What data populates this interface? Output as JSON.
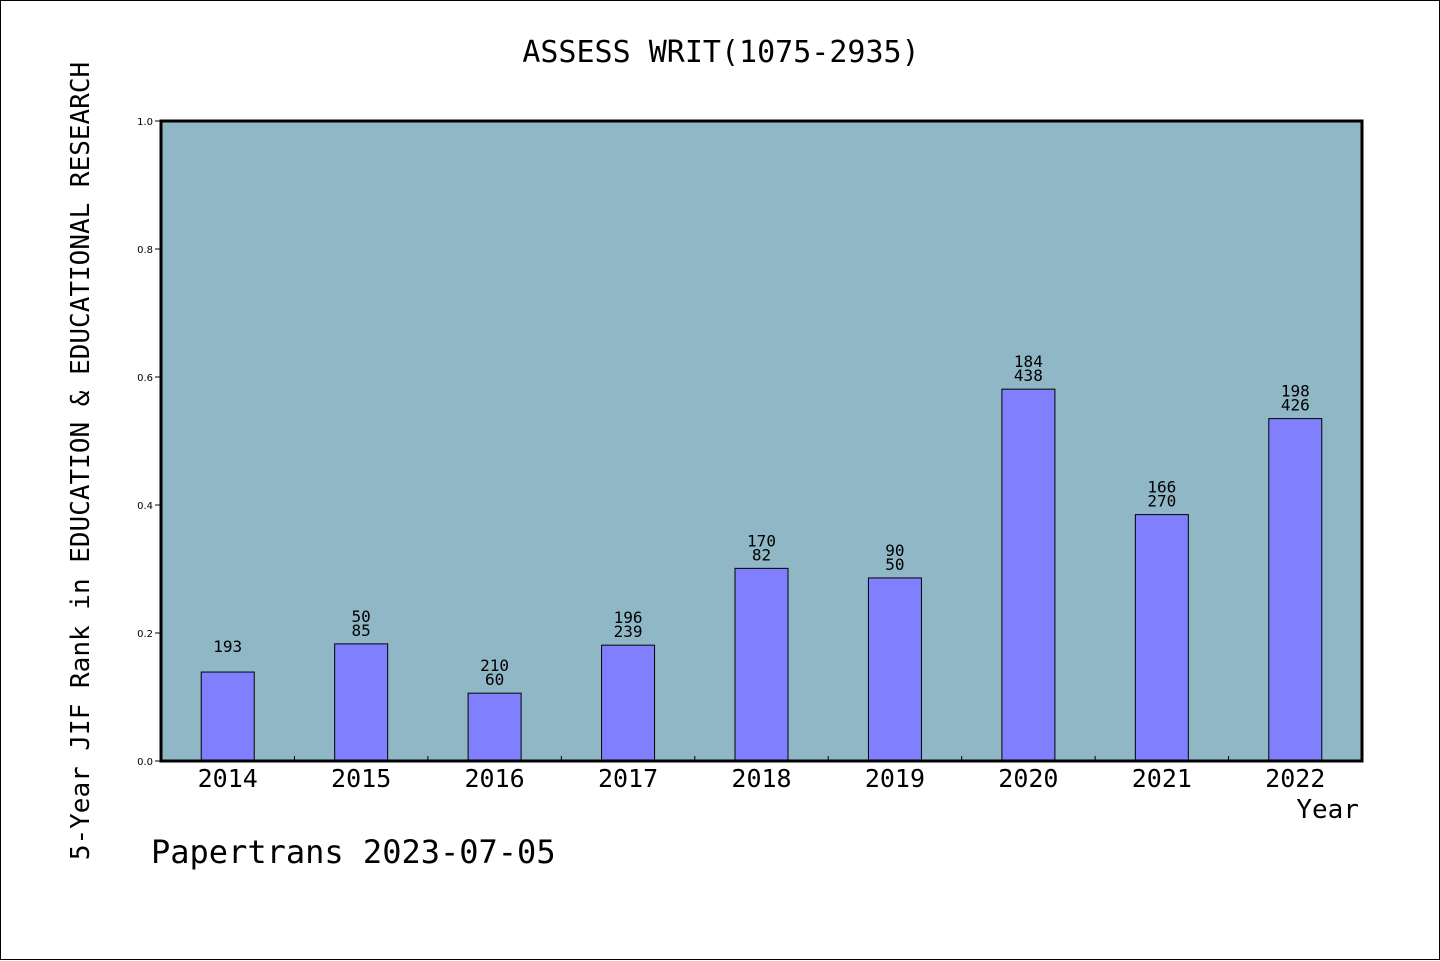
{
  "chart_data": {
    "type": "bar",
    "title": "ASSESS WRIT(1075-2935)",
    "xlabel": "Year",
    "ylabel": "5-Year JIF Rank in EDUCATION & EDUCATIONAL RESEARCH",
    "ylim": [
      0,
      1.0
    ],
    "yticks": [
      "0.0",
      "0.2",
      "0.4",
      "0.6",
      "0.8",
      "1.0"
    ],
    "categories": [
      "2014",
      "2015",
      "2016",
      "2017",
      "2018",
      "2019",
      "2020",
      "2021",
      "2022"
    ],
    "values": [
      0.139,
      0.183,
      0.106,
      0.181,
      0.301,
      0.286,
      0.581,
      0.385,
      0.535
    ],
    "bar_labels": [
      [
        "193"
      ],
      [
        "50",
        "85"
      ],
      [
        "210",
        "60"
      ],
      [
        "196",
        "239"
      ],
      [
        "170",
        "82"
      ],
      [
        "90",
        "50"
      ],
      [
        "184",
        "438"
      ],
      [
        "166",
        "270"
      ],
      [
        "198",
        "426"
      ]
    ],
    "grid": false,
    "colors": {
      "plot_background": "#8fb7c5",
      "bar_fill": "#8080ff",
      "bar_edge": "#000000"
    }
  },
  "footer": {
    "text": "Papertrans 2023-07-05"
  }
}
